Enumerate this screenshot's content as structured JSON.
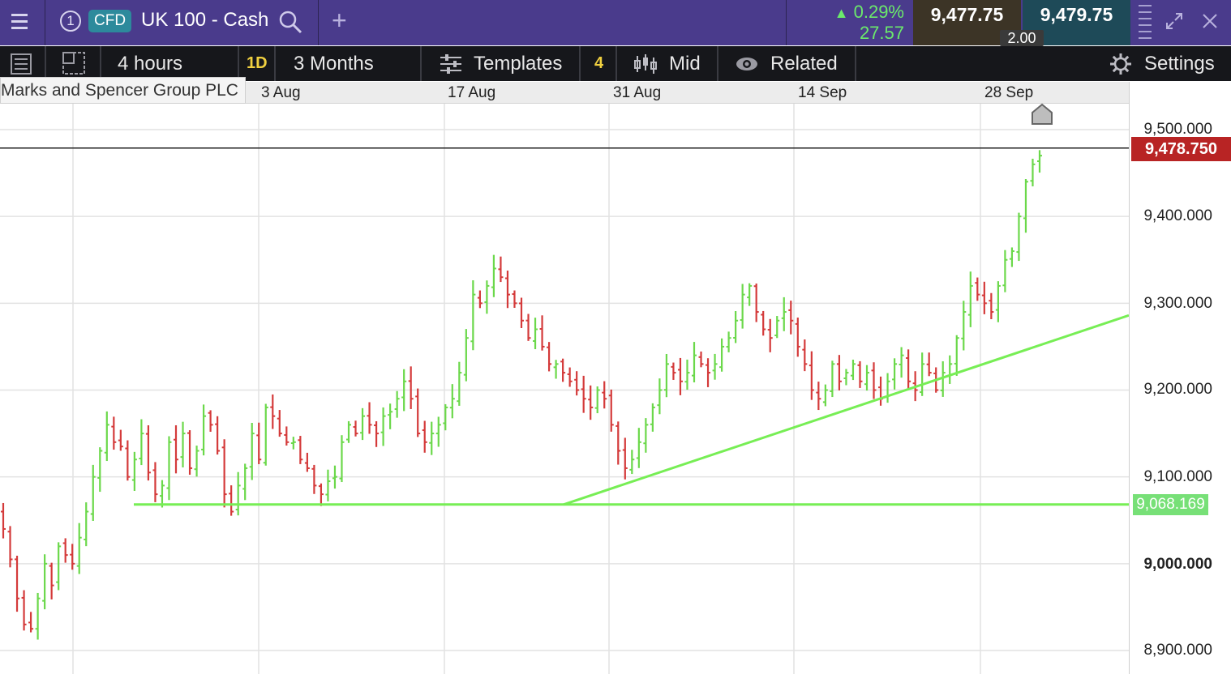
{
  "header": {
    "step_number": "1",
    "instrument_type": "CFD",
    "instrument_name": "UK 100 - Cash",
    "change_percent": "0.29%",
    "change_points": "27.57",
    "sell_price": "9,477.75",
    "buy_price": "9,479.75",
    "spread": "2.00",
    "colors": {
      "header_bg": "#4a3b8c",
      "positive": "#6bea6b",
      "sell_bg": "#3c3426",
      "buy_bg": "#1e4a58"
    }
  },
  "toolbar": {
    "interval": "4 hours",
    "interval_badge": "1D",
    "range": "3 Months",
    "templates_label": "Templates",
    "templates_count": "4",
    "price_mode": "Mid",
    "related_label": "Related",
    "settings_label": "Settings"
  },
  "tooltip": "Marks and Spencer Group PLC",
  "chart_data": {
    "type": "candlestick",
    "x_ticks": [
      "3 Aug",
      "17 Aug",
      "31 Aug",
      "14 Sep",
      "28 Sep"
    ],
    "y_ticks": [
      "9,500.000",
      "9,400.000",
      "9,300.000",
      "9,200.000",
      "9,100.000",
      "9,000.000",
      "8,900.000"
    ],
    "ylim": [
      8880,
      9530
    ],
    "current_price_label": "9,478.750",
    "current_price": 9478.75,
    "horizontal_line_label": "9,068.169",
    "horizontal_line_value": 9068.169,
    "trendline_start_value": 9068.169,
    "trendline_end_value": 9286,
    "colors": {
      "up": "#6bd84a",
      "down": "#d43a3a",
      "trendline": "#77ee55",
      "price_line": "#222222",
      "price_tag": "#b82424"
    },
    "close_path": [
      9040,
      9005,
      8960,
      8930,
      8925,
      8960,
      9000,
      8975,
      9020,
      9010,
      9000,
      9030,
      9060,
      9100,
      9130,
      9160,
      9140,
      9135,
      9100,
      9120,
      9150,
      9105,
      9080,
      9090,
      9140,
      9120,
      9150,
      9110,
      9130,
      9170,
      9160,
      9130,
      9080,
      9060,
      9090,
      9110,
      9150,
      9120,
      9180,
      9170,
      9150,
      9140,
      9140,
      9120,
      9110,
      9090,
      9080,
      9095,
      9100,
      9140,
      9160,
      9150,
      9170,
      9160,
      9150,
      9170,
      9175,
      9190,
      9210,
      9190,
      9150,
      9140,
      9150,
      9160,
      9180,
      9190,
      9220,
      9260,
      9310,
      9300,
      9320,
      9340,
      9330,
      9310,
      9300,
      9280,
      9260,
      9270,
      9250,
      9230,
      9230,
      9220,
      9210,
      9200,
      9190,
      9180,
      9200,
      9190,
      9160,
      9130,
      9110,
      9120,
      9140,
      9160,
      9180,
      9200,
      9230,
      9220,
      9210,
      9220,
      9240,
      9230,
      9220,
      9230,
      9250,
      9260,
      9280,
      9310,
      9320,
      9290,
      9270,
      9260,
      9280,
      9290,
      9280,
      9250,
      9230,
      9200,
      9190,
      9200,
      9230,
      9210,
      9220,
      9230,
      9210,
      9220,
      9200,
      9190,
      9210,
      9230,
      9240,
      9210,
      9200,
      9230,
      9220,
      9200,
      9220,
      9230,
      9260,
      9290,
      9320,
      9310,
      9300,
      9290,
      9320,
      9350,
      9360,
      9400,
      9440,
      9460,
      9470
    ]
  }
}
